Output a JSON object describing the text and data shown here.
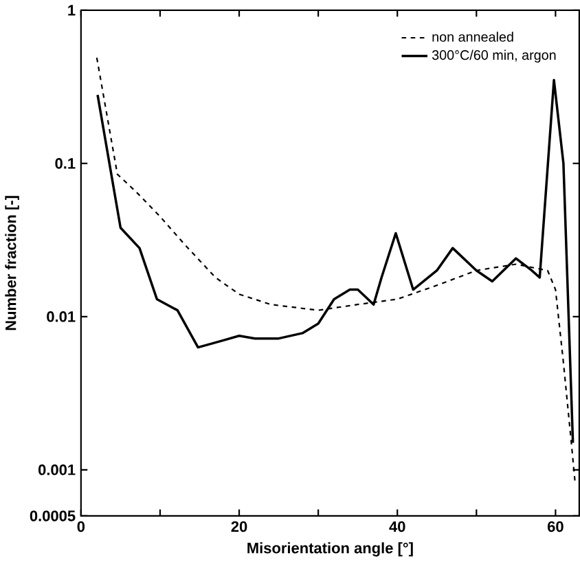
{
  "chart_data": {
    "type": "line",
    "xlabel": "Misorientation angle [°]",
    "ylabel": "Number fraction [-]",
    "log": "y",
    "xlim": [
      0,
      63
    ],
    "ylim": [
      0.0005,
      1
    ],
    "xticks": [
      0,
      {
        "value": 10,
        "label": null
      },
      20,
      {
        "value": 30,
        "label": null
      },
      40,
      {
        "value": 50,
        "label": null
      },
      60
    ],
    "yticks": [
      0.0005,
      0.001,
      0.01,
      0.1,
      1
    ],
    "legend": "top right",
    "grid": false,
    "series": [
      {
        "name": "non annealed",
        "color": "#000000",
        "line_style": "dashed",
        "x": [
          2,
          4.6,
          7,
          10,
          13,
          17,
          20,
          24,
          30,
          35,
          40,
          45,
          50,
          55,
          59,
          60,
          61,
          62,
          62.5
        ],
        "values": [
          0.49,
          0.085,
          0.065,
          0.045,
          0.03,
          0.018,
          0.014,
          0.012,
          0.011,
          0.012,
          0.013,
          0.016,
          0.02,
          0.022,
          0.02,
          0.015,
          0.005,
          0.0015,
          0.0008
        ]
      },
      {
        "name": "300°C/60 min, argon",
        "color": "#000000",
        "line_style": "solid",
        "x": [
          2.1,
          5,
          7.4,
          9.6,
          12.2,
          14.8,
          18,
          20,
          22,
          25,
          28,
          30,
          32,
          34,
          35,
          37,
          38,
          39.8,
          42,
          45,
          47,
          50,
          52,
          55,
          57,
          58,
          59.8,
          61,
          62.2
        ],
        "values": [
          0.28,
          0.038,
          0.028,
          0.013,
          0.011,
          0.0063,
          0.007,
          0.0075,
          0.0072,
          0.0072,
          0.0078,
          0.009,
          0.013,
          0.015,
          0.015,
          0.012,
          0.018,
          0.035,
          0.015,
          0.02,
          0.028,
          0.02,
          0.017,
          0.024,
          0.02,
          0.018,
          0.35,
          0.1,
          0.0015
        ]
      }
    ]
  }
}
